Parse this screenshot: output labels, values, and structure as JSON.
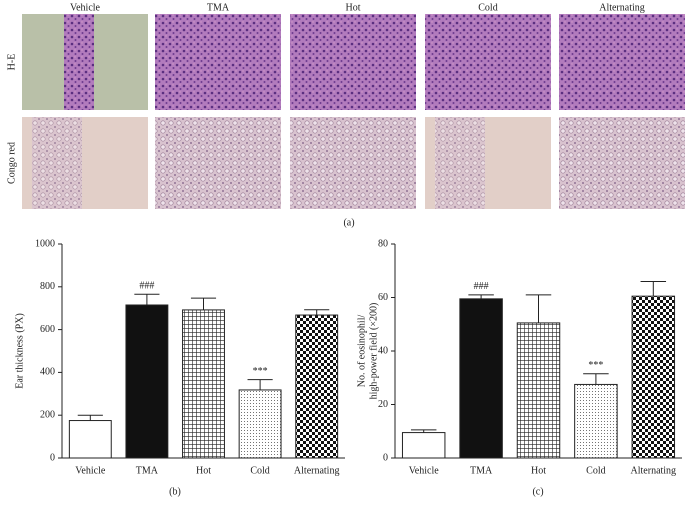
{
  "panel_a": {
    "columns": [
      "Vehicle",
      "TMA",
      "Hot",
      "Cold",
      "Alternating"
    ],
    "rows": [
      "H-E",
      "Congo red"
    ],
    "caption": "(a)"
  },
  "chart_data": [
    {
      "type": "bar",
      "caption": "(b)",
      "y_label": "Ear thickness (PX)",
      "categories": [
        "Vehicle",
        "TMA",
        "Hot",
        "Cold",
        "Alternating"
      ],
      "values": [
        175,
        715,
        692,
        318,
        668
      ],
      "errors": [
        25,
        50,
        55,
        48,
        25
      ],
      "patterns": [
        "white",
        "black",
        "grid",
        "dots",
        "checker"
      ],
      "annotations": [
        {
          "text": "###",
          "category": "TMA"
        },
        {
          "text": "***",
          "category": "Cold"
        }
      ],
      "ylim": [
        0,
        1000
      ],
      "yticks": [
        0,
        200,
        400,
        600,
        800,
        1000
      ]
    },
    {
      "type": "bar",
      "caption": "(c)",
      "y_label": [
        "No. of eosinophil/",
        "high-power field (×200)"
      ],
      "categories": [
        "Vehicle",
        "TMA",
        "Hot",
        "Cold",
        "Alternating"
      ],
      "values": [
        9.5,
        59.5,
        50.5,
        27.5,
        60.5
      ],
      "errors": [
        1,
        1.5,
        10.5,
        4,
        5.5
      ],
      "patterns": [
        "white",
        "black",
        "grid",
        "dots",
        "checker"
      ],
      "annotations": [
        {
          "text": "###",
          "category": "TMA"
        },
        {
          "text": "***",
          "category": "Cold"
        }
      ],
      "ylim": [
        0,
        80
      ],
      "yticks": [
        0,
        20,
        40,
        60,
        80
      ]
    }
  ]
}
